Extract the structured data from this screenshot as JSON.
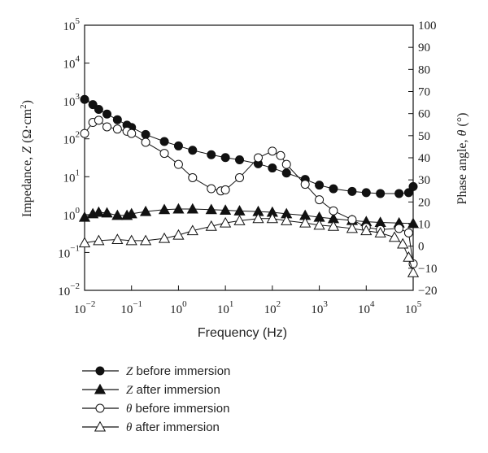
{
  "chart_data": {
    "type": "scatter",
    "xlabel": "Frequency (Hz)",
    "ylabel_left": {
      "pre": "Impedance, ",
      "var": "Z",
      "unit": " (Ω·cm",
      "sup": "2",
      "close": ")"
    },
    "ylabel_right": {
      "pre": "Phase angle, ",
      "var": "θ",
      "unit": " (°)"
    },
    "x_scale": "log",
    "x_ticks": [
      {
        "base": "10",
        "exp": "−2",
        "value": 0.01
      },
      {
        "base": "10",
        "exp": "−1",
        "value": 0.1
      },
      {
        "base": "10",
        "exp": "0",
        "value": 1
      },
      {
        "base": "10",
        "exp": "1",
        "value": 10
      },
      {
        "base": "10",
        "exp": "2",
        "value": 100
      },
      {
        "base": "10",
        "exp": "3",
        "value": 1000
      },
      {
        "base": "10",
        "exp": "4",
        "value": 10000
      },
      {
        "base": "10",
        "exp": "5",
        "value": 100000
      }
    ],
    "y_left_scale": "log",
    "y_left_ticks": [
      {
        "base": "10",
        "exp": "−2",
        "value": 0.01
      },
      {
        "base": "10",
        "exp": "−1",
        "value": 0.1
      },
      {
        "base": "10",
        "exp": "0",
        "value": 1
      },
      {
        "base": "10",
        "exp": "1",
        "value": 10
      },
      {
        "base": "10",
        "exp": "2",
        "value": 100
      },
      {
        "base": "10",
        "exp": "3",
        "value": 1000
      },
      {
        "base": "10",
        "exp": "4",
        "value": 10000
      },
      {
        "base": "10",
        "exp": "5",
        "value": 100000
      }
    ],
    "y_right_ticks": [
      "100",
      "90",
      "80",
      "70",
      "60",
      "50",
      "40",
      "30",
      "20",
      "10",
      "0",
      "−10",
      "−20"
    ],
    "y_right_range": [
      -20,
      100
    ],
    "legend_position": "below plot",
    "series": [
      {
        "key": "z_before",
        "name": "Z before immersion",
        "var": "Z",
        "rest": " before immersion",
        "axis": "left",
        "marker": "circle-filled",
        "points": [
          [
            0.01,
            1100
          ],
          [
            0.015,
            800
          ],
          [
            0.02,
            600
          ],
          [
            0.03,
            450
          ],
          [
            0.05,
            320
          ],
          [
            0.08,
            230
          ],
          [
            0.1,
            200
          ],
          [
            0.2,
            130
          ],
          [
            0.5,
            85
          ],
          [
            1,
            65
          ],
          [
            2,
            50
          ],
          [
            5,
            38
          ],
          [
            10,
            32
          ],
          [
            20,
            28
          ],
          [
            50,
            22
          ],
          [
            100,
            17
          ],
          [
            200,
            12.5
          ],
          [
            500,
            8.5
          ],
          [
            1000,
            6
          ],
          [
            2000,
            4.8
          ],
          [
            5000,
            4.1
          ],
          [
            10000,
            3.8
          ],
          [
            20000,
            3.6
          ],
          [
            50000,
            3.6
          ],
          [
            80000,
            3.8
          ],
          [
            100000,
            5.5
          ]
        ]
      },
      {
        "key": "z_after",
        "name": "Z after immersion",
        "var": "Z",
        "rest": " after immersion",
        "axis": "left",
        "marker": "triangle-filled",
        "points": [
          [
            0.01,
            0.85
          ],
          [
            0.015,
            1.05
          ],
          [
            0.02,
            1.15
          ],
          [
            0.03,
            1.1
          ],
          [
            0.05,
            0.95
          ],
          [
            0.08,
            0.95
          ],
          [
            0.1,
            1.05
          ],
          [
            0.2,
            1.2
          ],
          [
            0.5,
            1.35
          ],
          [
            1,
            1.4
          ],
          [
            2,
            1.4
          ],
          [
            5,
            1.35
          ],
          [
            10,
            1.3
          ],
          [
            20,
            1.25
          ],
          [
            50,
            1.2
          ],
          [
            100,
            1.15
          ],
          [
            200,
            1.05
          ],
          [
            500,
            0.95
          ],
          [
            1000,
            0.85
          ],
          [
            2000,
            0.78
          ],
          [
            5000,
            0.7
          ],
          [
            10000,
            0.65
          ],
          [
            20000,
            0.62
          ],
          [
            50000,
            0.6
          ],
          [
            100000,
            0.58
          ]
        ]
      },
      {
        "key": "theta_before",
        "name": "θ before immersion",
        "var": "θ",
        "rest": " before immersion",
        "axis": "right",
        "marker": "circle-open",
        "points": [
          [
            0.01,
            51
          ],
          [
            0.015,
            56
          ],
          [
            0.02,
            57
          ],
          [
            0.03,
            54
          ],
          [
            0.05,
            53
          ],
          [
            0.08,
            52
          ],
          [
            0.1,
            51
          ],
          [
            0.2,
            47
          ],
          [
            0.5,
            42
          ],
          [
            1,
            37
          ],
          [
            2,
            31
          ],
          [
            5,
            26
          ],
          [
            8,
            25
          ],
          [
            10,
            25.5
          ],
          [
            20,
            31
          ],
          [
            50,
            40
          ],
          [
            100,
            43
          ],
          [
            150,
            41
          ],
          [
            200,
            37
          ],
          [
            500,
            28
          ],
          [
            1000,
            21
          ],
          [
            2000,
            16
          ],
          [
            5000,
            12
          ],
          [
            10000,
            8.5
          ],
          [
            20000,
            7.5
          ],
          [
            50000,
            8
          ],
          [
            80000,
            6
          ],
          [
            100000,
            -8
          ]
        ]
      },
      {
        "key": "theta_after",
        "name": "θ after immersion",
        "var": "θ",
        "rest": " after immersion",
        "axis": "right",
        "marker": "triangle-open",
        "points": [
          [
            0.01,
            1.5
          ],
          [
            0.02,
            2.5
          ],
          [
            0.05,
            3
          ],
          [
            0.1,
            2.5
          ],
          [
            0.2,
            2.5
          ],
          [
            0.5,
            3.5
          ],
          [
            1,
            5
          ],
          [
            2,
            7
          ],
          [
            5,
            9
          ],
          [
            10,
            10.5
          ],
          [
            20,
            11.5
          ],
          [
            50,
            12.5
          ],
          [
            100,
            12.5
          ],
          [
            200,
            11.5
          ],
          [
            500,
            10.5
          ],
          [
            1000,
            9.5
          ],
          [
            2000,
            9
          ],
          [
            5000,
            8
          ],
          [
            10000,
            7
          ],
          [
            20000,
            6
          ],
          [
            40000,
            4
          ],
          [
            60000,
            1
          ],
          [
            80000,
            -5
          ],
          [
            100000,
            -12
          ]
        ]
      }
    ]
  }
}
